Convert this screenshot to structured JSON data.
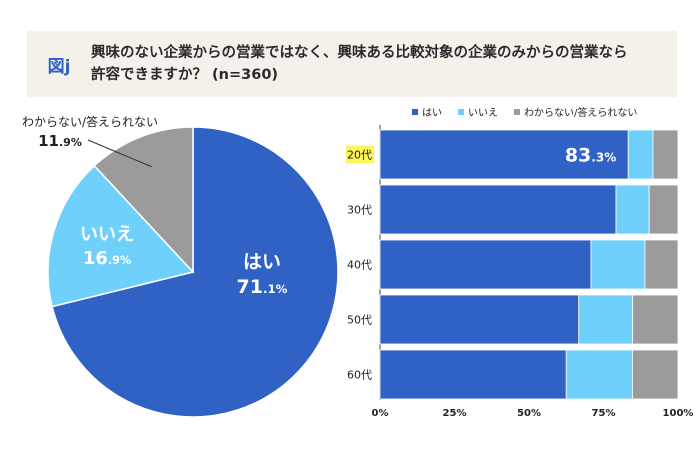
{
  "header": {
    "figure_label": "図j",
    "title_line1": "興味のない企業からの営業ではなく、興味ある比較対象の企業のみからの営業なら",
    "title_line2": "許容できますか？ (n=360)"
  },
  "colors": {
    "yes": "#2f62c4",
    "no": "#6fd0fb",
    "unknown": "#9b9b9b",
    "highlight": "#fff45c"
  },
  "chart_data": [
    {
      "type": "pie",
      "title": "",
      "slices": [
        {
          "name": "はい",
          "value_int": "71",
          "value_dec": ".1%",
          "value": 71.1
        },
        {
          "name": "いいえ",
          "value_int": "16",
          "value_dec": ".9%",
          "value": 16.9
        },
        {
          "name": "わからない/答えられない",
          "value_int": "11",
          "value_dec": ".9%",
          "value": 11.9
        }
      ]
    },
    {
      "type": "bar",
      "orientation": "horizontal",
      "stacked": true,
      "legend_position": "top",
      "legend": [
        "はい",
        "いいえ",
        "わからない/答えられない"
      ],
      "categories": [
        "20代",
        "30代",
        "40代",
        "50代",
        "60代"
      ],
      "highlight_category": "20代",
      "series": [
        {
          "name": "はい",
          "values": [
            83.3,
            79.2,
            70.8,
            66.7,
            62.5
          ]
        },
        {
          "name": "いいえ",
          "values": [
            8.3,
            11.1,
            18.1,
            18.1,
            22.2
          ]
        },
        {
          "name": "わからない/答えられない",
          "values": [
            8.4,
            9.7,
            11.1,
            15.2,
            15.3
          ]
        }
      ],
      "data_label": {
        "category": "20代",
        "int": "83",
        "dec": ".3%"
      },
      "xlim": [
        0,
        100
      ],
      "x_ticks": [
        "0%",
        "25%",
        "50%",
        "75%",
        "100%"
      ]
    }
  ]
}
